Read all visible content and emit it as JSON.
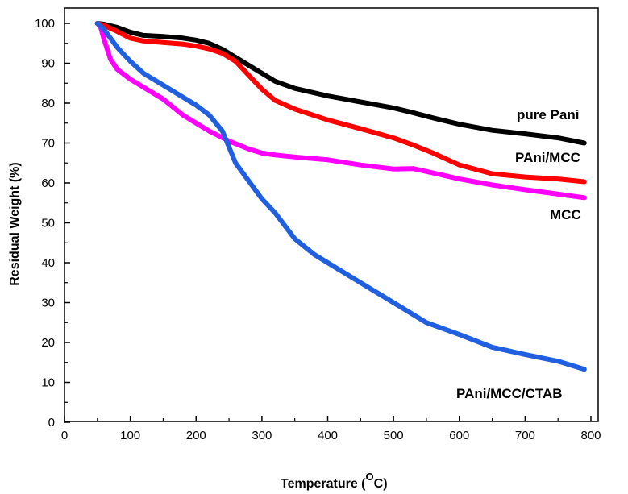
{
  "chart_data": {
    "type": "line",
    "xlabel": "Temperature (",
    "xlabel_unit": "O",
    "xlabel_end": "C)",
    "ylabel": "Residual Weight (%)",
    "xlim": [
      0,
      800
    ],
    "ylim": [
      0,
      100
    ],
    "x_ticks": [
      "0",
      "100",
      "200",
      "300",
      "400",
      "500",
      "600",
      "700",
      "800"
    ],
    "y_ticks": [
      "0",
      "10",
      "20",
      "30",
      "40",
      "50",
      "60",
      "70",
      "80",
      "90",
      "100"
    ],
    "grid": false,
    "series": [
      {
        "name": "pure Pani",
        "color": "#000000",
        "x": [
          50,
          60,
          80,
          100,
          120,
          150,
          180,
          200,
          220,
          240,
          260,
          280,
          300,
          320,
          350,
          400,
          450,
          500,
          530,
          560,
          600,
          650,
          700,
          750,
          790
        ],
        "y": [
          100,
          99.8,
          99.0,
          97.8,
          97.0,
          96.7,
          96.3,
          95.8,
          95.0,
          93.5,
          91.5,
          89.5,
          87.5,
          85.5,
          83.7,
          81.8,
          80.3,
          78.8,
          77.6,
          76.3,
          74.7,
          73.2,
          72.3,
          71.3,
          70.0
        ]
      },
      {
        "name": "PAni/MCC",
        "color": "#ff0000",
        "x": [
          50,
          60,
          80,
          100,
          120,
          150,
          180,
          200,
          220,
          240,
          260,
          280,
          300,
          320,
          350,
          400,
          450,
          500,
          530,
          560,
          600,
          650,
          700,
          750,
          790
        ],
        "y": [
          100,
          99.5,
          98.0,
          96.3,
          95.6,
          95.2,
          94.8,
          94.3,
          93.6,
          92.5,
          90.5,
          87.0,
          83.5,
          80.7,
          78.5,
          75.8,
          73.6,
          71.3,
          69.5,
          67.5,
          64.5,
          62.3,
          61.5,
          61.0,
          60.3
        ]
      },
      {
        "name": "MCC",
        "color": "#ff00ff",
        "x": [
          50,
          55,
          60,
          70,
          80,
          100,
          120,
          150,
          180,
          200,
          220,
          250,
          280,
          300,
          320,
          350,
          400,
          450,
          500,
          530,
          560,
          600,
          650,
          700,
          750,
          790
        ],
        "y": [
          100,
          99.0,
          96.0,
          91.0,
          88.5,
          86.0,
          84.0,
          81.0,
          77.0,
          75.0,
          73.0,
          70.5,
          68.5,
          67.5,
          67.0,
          66.5,
          65.8,
          64.5,
          63.5,
          63.6,
          62.5,
          61.0,
          59.5,
          58.3,
          57.2,
          56.3
        ]
      },
      {
        "name": "PAni/MCC/CTAB",
        "color": "#2060e0",
        "x": [
          50,
          60,
          80,
          100,
          120,
          150,
          180,
          200,
          220,
          240,
          250,
          260,
          280,
          300,
          320,
          350,
          380,
          400,
          450,
          500,
          550,
          600,
          650,
          700,
          750,
          790
        ],
        "y": [
          100,
          98.5,
          94.0,
          90.5,
          87.5,
          84.5,
          81.5,
          79.5,
          77.0,
          73.0,
          69.0,
          65.0,
          60.5,
          56.0,
          52.5,
          46.0,
          42.0,
          40.0,
          35.0,
          30.0,
          25.0,
          22.0,
          18.8,
          17.0,
          15.3,
          13.3
        ]
      }
    ]
  }
}
